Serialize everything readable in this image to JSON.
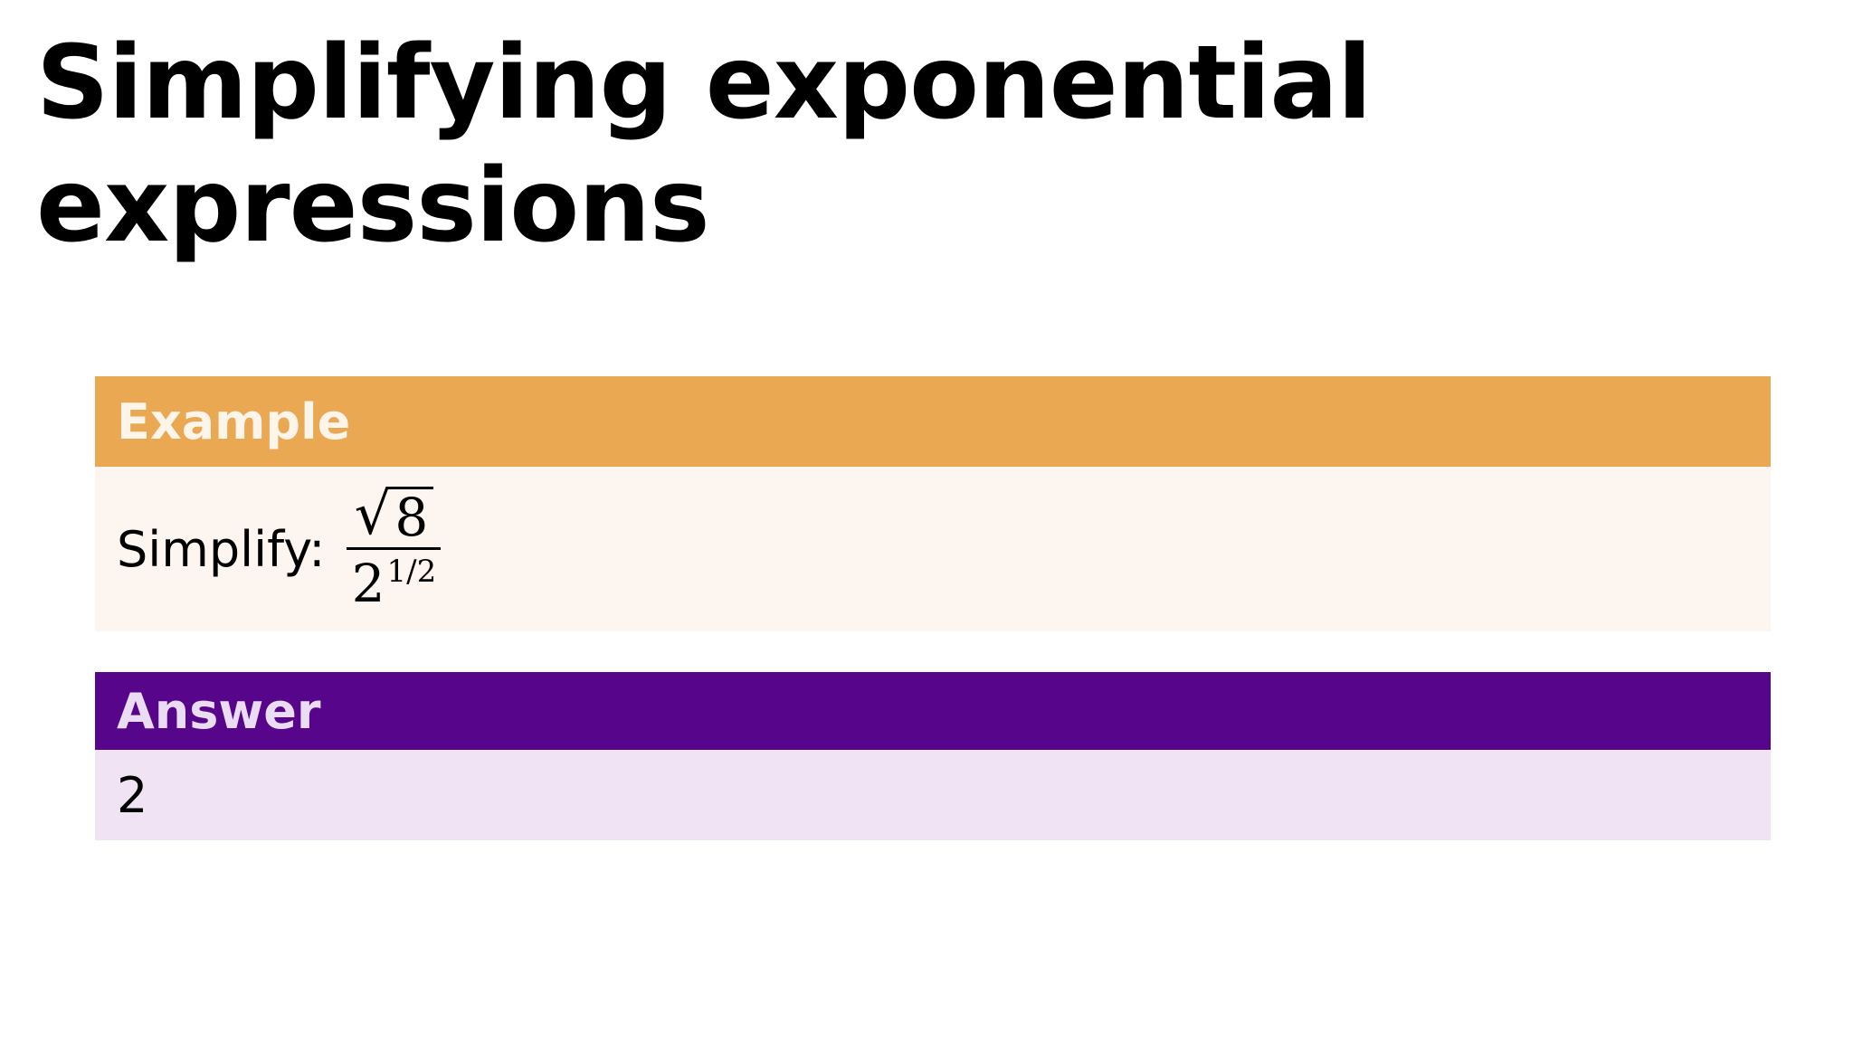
{
  "slide": {
    "title": "Simplifying exponential expressions"
  },
  "example": {
    "heading": "Example",
    "prompt": "Simplify:",
    "expression": {
      "numerator_radical": "√",
      "numerator_radicand": "8",
      "denominator_base": "2",
      "denominator_exponent": "1/2"
    }
  },
  "answer": {
    "heading": "Answer",
    "value": "2"
  },
  "colors": {
    "example_header": "#eba853",
    "example_body": "#fdf5ef",
    "answer_header": "#57058b",
    "answer_body": "#f0e4f4"
  }
}
